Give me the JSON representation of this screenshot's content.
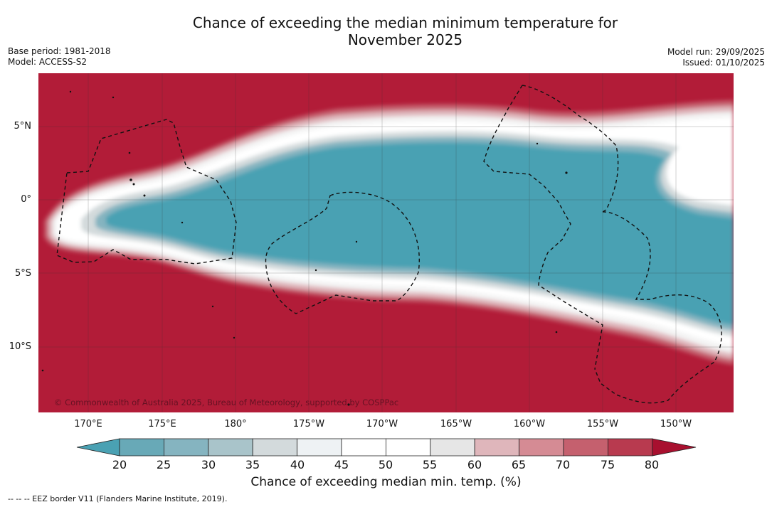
{
  "header": {
    "title_line1": "Chance of exceeding the median minimum temperature for",
    "title_line2": "November 2025",
    "base_period": "Base period: 1981-2018",
    "model": "Model: ACCESS-S2",
    "model_run": "Model run: 29/09/2025",
    "issued": "Issued: 01/10/2025"
  },
  "map": {
    "lat_labels": [
      "5°N",
      "0°",
      "5°S",
      "10°S"
    ],
    "lon_labels": [
      "170°E",
      "175°E",
      "180°",
      "175°W",
      "170°W",
      "165°W",
      "160°W",
      "155°W",
      "150°W"
    ],
    "copyright": "© Commonwealth of Australia 2025, Bureau of Meteorology, supported by COSPPac",
    "colors": {
      "high": "#b21c38",
      "low": "#4aa1b3",
      "neutral": "#ffffff"
    }
  },
  "colorbar": {
    "ticks": [
      "20",
      "25",
      "30",
      "35",
      "40",
      "45",
      "50",
      "55",
      "60",
      "65",
      "70",
      "75",
      "80"
    ],
    "colors": [
      "#4aa1b3",
      "#68a9b7",
      "#85b4c0",
      "#a9c4ca",
      "#d3dadc",
      "#eef2f4",
      "#ffffff",
      "#ffffff",
      "#e6e6e6",
      "#dfb6bb",
      "#d58b94",
      "#c5606e",
      "#b83a4f",
      "#a8102f"
    ],
    "label": "Chance of exceeding median min. temp. (%)"
  },
  "footnote": "--  --  -- EEZ border V11 (Flanders Marine Institute, 2019)."
}
